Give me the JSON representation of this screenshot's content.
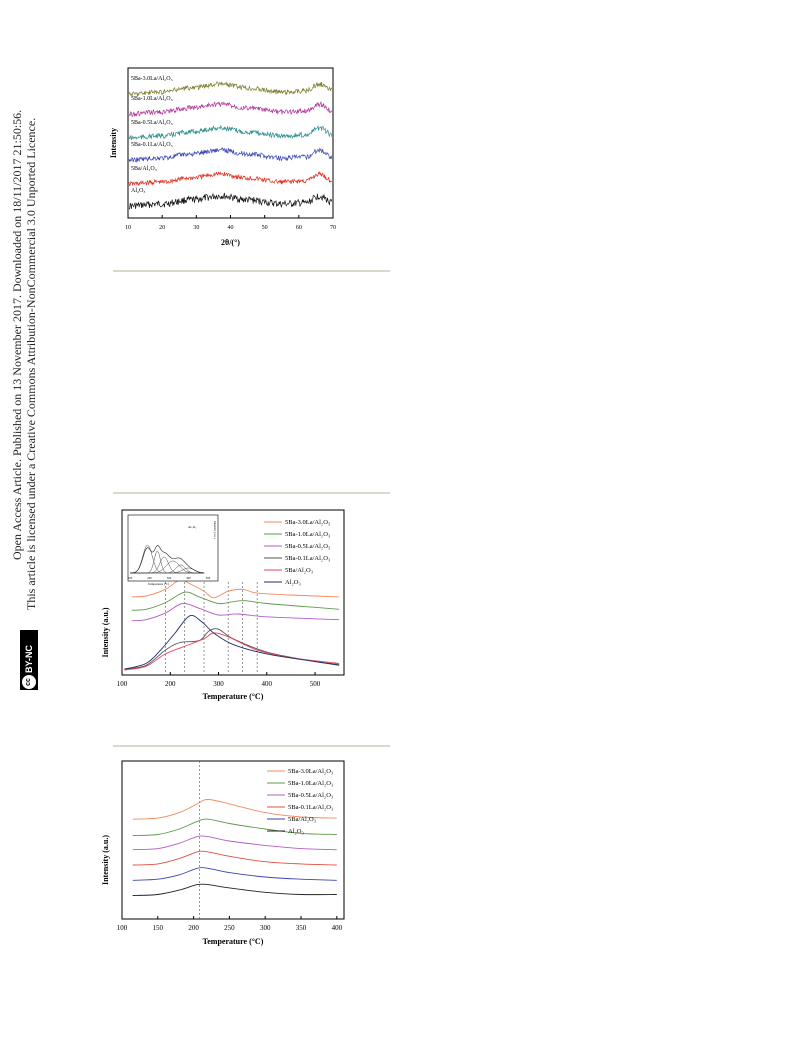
{
  "side_text": {
    "line1": "Open Access Article. Published on 13 November 2017. Downloaded on 18/11/2017 21:50:56.",
    "line2": "This article is licensed under a Creative Commons Attribution-NonCommercial 3.0 Unported Licence.",
    "badge_cc": "cc",
    "badge_label": "BY-NC"
  },
  "chart_data": [
    {
      "type": "line",
      "xlabel": "2θ/(°)",
      "ylabel": "Intensity",
      "xlim": [
        10,
        70
      ],
      "xticks": [
        10,
        20,
        30,
        40,
        50,
        60,
        70
      ],
      "legend": "inline-labels",
      "grid": false,
      "series": [
        {
          "name": "Al₂O₃",
          "color": "#111111"
        },
        {
          "name": "5Ba/Al₂O₃",
          "color": "#e03020"
        },
        {
          "name": "5Ba-0.1La/Al₂O₃",
          "color": "#3a46b0"
        },
        {
          "name": "5Ba-0.5La/Al₂O₃",
          "color": "#2b8f8c"
        },
        {
          "name": "5Ba-1.0La/Al₂O₃",
          "color": "#b0389a"
        },
        {
          "name": "5Ba-3.0La/Al₂O₃",
          "color": "#7c7d2a"
        }
      ]
    },
    {
      "type": "line",
      "xlabel": "Temperature (°C)",
      "ylabel": "Intensity (a.u.)",
      "xlim": [
        100,
        560
      ],
      "xticks": [
        100,
        200,
        300,
        400,
        500
      ],
      "legend": "top-right",
      "grid": false,
      "reference_lines_x": [
        190,
        230,
        270,
        320,
        350,
        380
      ],
      "series": [
        {
          "name": "5Ba-3.0La/Al₂O₃",
          "color": "#f08a5d",
          "points": [
            [
              120,
              78
            ],
            [
              150,
              79
            ],
            [
              190,
              86
            ],
            [
              220,
              96
            ],
            [
              240,
              92
            ],
            [
              270,
              84
            ],
            [
              290,
              77
            ],
            [
              320,
              84
            ],
            [
              350,
              86
            ],
            [
              380,
              82
            ],
            [
              450,
              80
            ],
            [
              550,
              78
            ]
          ]
        },
        {
          "name": "5Ba-1.0La/Al₂O₃",
          "color": "#5e9a4c",
          "points": [
            [
              120,
              64
            ],
            [
              150,
              65
            ],
            [
              190,
              72
            ],
            [
              230,
              83
            ],
            [
              260,
              78
            ],
            [
              300,
              71
            ],
            [
              330,
              73
            ],
            [
              355,
              74
            ],
            [
              400,
              71
            ],
            [
              500,
              67
            ],
            [
              550,
              65
            ]
          ]
        },
        {
          "name": "5Ba-0.5La/Al₂O₃",
          "color": "#b35dc7",
          "points": [
            [
              120,
              53
            ],
            [
              150,
              54
            ],
            [
              190,
              61
            ],
            [
              225,
              71
            ],
            [
              260,
              66
            ],
            [
              300,
              59
            ],
            [
              340,
              60
            ],
            [
              400,
              57
            ],
            [
              500,
              55
            ],
            [
              550,
              54
            ]
          ]
        },
        {
          "name": "5Ba-0.1La/Al₂O₃",
          "color": "#555555",
          "points": [
            [
              105,
              2
            ],
            [
              150,
              6
            ],
            [
              190,
              22
            ],
            [
              220,
              30
            ],
            [
              260,
              32
            ],
            [
              280,
              42
            ],
            [
              300,
              44
            ],
            [
              330,
              34
            ],
            [
              400,
              20
            ],
            [
              500,
              10
            ],
            [
              550,
              7
            ]
          ]
        },
        {
          "name": "5Ba/Al₂O₃",
          "color": "#e8435a",
          "points": [
            [
              105,
              1
            ],
            [
              150,
              5
            ],
            [
              190,
              18
            ],
            [
              230,
              26
            ],
            [
              270,
              34
            ],
            [
              290,
              40
            ],
            [
              320,
              36
            ],
            [
              380,
              22
            ],
            [
              450,
              14
            ],
            [
              550,
              8
            ]
          ]
        },
        {
          "name": "Al₂O₃",
          "color": "#1f2f6a",
          "points": [
            [
              105,
              2
            ],
            [
              150,
              8
            ],
            [
              180,
              22
            ],
            [
              210,
              40
            ],
            [
              240,
              58
            ],
            [
              265,
              52
            ],
            [
              290,
              40
            ],
            [
              330,
              28
            ],
            [
              400,
              18
            ],
            [
              500,
              10
            ],
            [
              550,
              6
            ]
          ]
        }
      ],
      "inset": {
        "xlabel": "Temperature (°C)",
        "ylabel": "Intensity (a.u.)",
        "label": "Al₂O₃",
        "xticks": [
          100,
          200,
          300,
          400,
          500
        ]
      }
    },
    {
      "type": "line",
      "xlabel": "Temperature (°C)",
      "ylabel": "Intensity (a.u.)",
      "xlim": [
        100,
        410
      ],
      "xticks": [
        100,
        150,
        200,
        250,
        300,
        350,
        400
      ],
      "legend": "top-right",
      "grid": false,
      "reference_lines_x": [
        208
      ],
      "series": [
        {
          "name": "5Ba-3.0La/Al₂O₃",
          "color": "#f08a5d",
          "points": [
            [
              115,
              86
            ],
            [
              150,
              87
            ],
            [
              180,
              92
            ],
            [
              205,
              100
            ],
            [
              220,
              104
            ],
            [
              250,
              100
            ],
            [
              300,
              92
            ],
            [
              350,
              88
            ],
            [
              400,
              87
            ]
          ]
        },
        {
          "name": "5Ba-1.0La/Al₂O₃",
          "color": "#5e9a4c",
          "points": [
            [
              115,
              71
            ],
            [
              150,
              72
            ],
            [
              180,
              77
            ],
            [
              205,
              84
            ],
            [
              220,
              86
            ],
            [
              250,
              82
            ],
            [
              300,
              77
            ],
            [
              350,
              73
            ],
            [
              400,
              72
            ]
          ]
        },
        {
          "name": "5Ba-0.5La/Al₂O₃",
          "color": "#b35dc7",
          "points": [
            [
              115,
              58
            ],
            [
              150,
              59
            ],
            [
              180,
              64
            ],
            [
              205,
              70
            ],
            [
              220,
              70
            ],
            [
              250,
              66
            ],
            [
              300,
              62
            ],
            [
              350,
              59
            ],
            [
              400,
              58
            ]
          ]
        },
        {
          "name": "5Ba-0.1La/Al₂O₃",
          "color": "#e05040",
          "points": [
            [
              115,
              44
            ],
            [
              150,
              45
            ],
            [
              180,
              50
            ],
            [
              205,
              56
            ],
            [
              220,
              56
            ],
            [
              250,
              52
            ],
            [
              300,
              47
            ],
            [
              350,
              45
            ],
            [
              400,
              44
            ]
          ]
        },
        {
          "name": "5Ba/Al₂O₃",
          "color": "#3a46b0",
          "points": [
            [
              115,
              30
            ],
            [
              150,
              31
            ],
            [
              180,
              35
            ],
            [
              205,
              41
            ],
            [
              220,
              41
            ],
            [
              250,
              37
            ],
            [
              300,
              33
            ],
            [
              350,
              31
            ],
            [
              400,
              30
            ]
          ]
        },
        {
          "name": "Al₂O₃",
          "color": "#222222",
          "points": [
            [
              115,
              16
            ],
            [
              150,
              17
            ],
            [
              180,
              21
            ],
            [
              205,
              26
            ],
            [
              220,
              26
            ],
            [
              250,
              23
            ],
            [
              300,
              19
            ],
            [
              350,
              17
            ],
            [
              400,
              17
            ]
          ]
        }
      ]
    }
  ]
}
